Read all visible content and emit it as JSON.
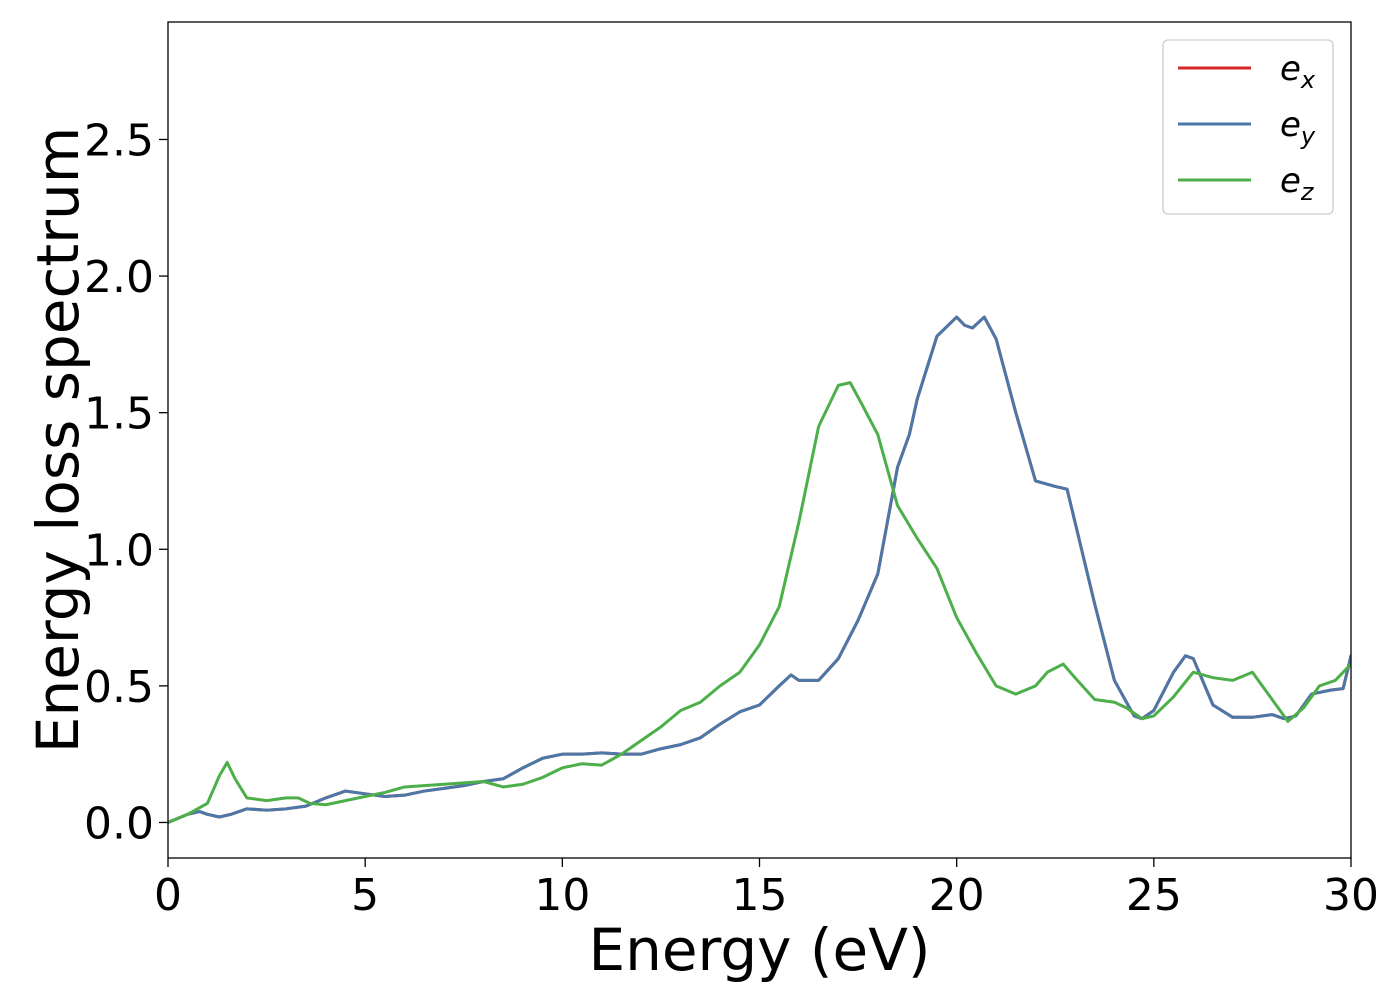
{
  "chart_data": {
    "type": "line",
    "title": "",
    "xlabel": "Energy (eV)",
    "ylabel": "Energy loss spectrum",
    "xlim": [
      0,
      30
    ],
    "ylim": [
      -0.13,
      2.93
    ],
    "xticks": [
      0,
      5,
      10,
      15,
      20,
      25,
      30
    ],
    "xtick_labels": [
      "0",
      "5",
      "10",
      "15",
      "20",
      "25",
      "30"
    ],
    "yticks": [
      0.0,
      0.5,
      1.0,
      1.5,
      2.0,
      2.5
    ],
    "ytick_labels": [
      "0.0",
      "0.5",
      "1.0",
      "1.5",
      "2.0",
      "2.5"
    ],
    "grid": false,
    "legend_position": "top-right",
    "series": [
      {
        "name": "e_x",
        "legend_base": "e",
        "legend_sub": "x",
        "color": "#d62728",
        "x": [
          0,
          0.5,
          0.8,
          1.0,
          1.3,
          1.6,
          2.0,
          2.5,
          3.0,
          3.5,
          4.0,
          4.5,
          5.0,
          5.5,
          6.0,
          6.5,
          7.0,
          7.5,
          8.0,
          8.5,
          9.0,
          9.5,
          10.0,
          10.5,
          11.0,
          11.5,
          12.0,
          12.5,
          13.0,
          13.5,
          14.0,
          14.5,
          15.0,
          15.5,
          15.8,
          16.0,
          16.5,
          17.0,
          17.5,
          18.0,
          18.5,
          18.8,
          19.0,
          19.5,
          20.0,
          20.2,
          20.4,
          20.7,
          21.0,
          21.5,
          22.0,
          22.5,
          22.8,
          23.0,
          23.5,
          24.0,
          24.5,
          24.7,
          25.0,
          25.5,
          25.8,
          26.0,
          26.5,
          27.0,
          27.5,
          28.0,
          28.3,
          28.6,
          29.0,
          29.5,
          29.8,
          30.0
        ],
        "y": [
          0.0,
          0.03,
          0.04,
          0.03,
          0.02,
          0.03,
          0.05,
          0.045,
          0.05,
          0.06,
          0.09,
          0.115,
          0.105,
          0.095,
          0.1,
          0.115,
          0.125,
          0.135,
          0.15,
          0.16,
          0.2,
          0.235,
          0.25,
          0.25,
          0.255,
          0.25,
          0.25,
          0.27,
          0.285,
          0.31,
          0.36,
          0.405,
          0.43,
          0.5,
          0.54,
          0.52,
          0.52,
          0.6,
          0.74,
          0.91,
          1.3,
          1.42,
          1.55,
          1.78,
          1.85,
          1.82,
          1.81,
          1.85,
          1.77,
          1.5,
          1.25,
          1.23,
          1.22,
          1.1,
          0.8,
          0.52,
          0.39,
          0.38,
          0.41,
          0.55,
          0.61,
          0.6,
          0.43,
          0.385,
          0.385,
          0.395,
          0.38,
          0.39,
          0.47,
          0.485,
          0.49,
          0.61
        ]
      },
      {
        "name": "e_y",
        "legend_base": "e",
        "legend_sub": "y",
        "color": "#4b78a8",
        "x": [
          0,
          0.5,
          0.8,
          1.0,
          1.3,
          1.6,
          2.0,
          2.5,
          3.0,
          3.5,
          4.0,
          4.5,
          5.0,
          5.5,
          6.0,
          6.5,
          7.0,
          7.5,
          8.0,
          8.5,
          9.0,
          9.5,
          10.0,
          10.5,
          11.0,
          11.5,
          12.0,
          12.5,
          13.0,
          13.5,
          14.0,
          14.5,
          15.0,
          15.5,
          15.8,
          16.0,
          16.5,
          17.0,
          17.5,
          18.0,
          18.5,
          18.8,
          19.0,
          19.5,
          20.0,
          20.2,
          20.4,
          20.7,
          21.0,
          21.5,
          22.0,
          22.5,
          22.8,
          23.0,
          23.5,
          24.0,
          24.5,
          24.7,
          25.0,
          25.5,
          25.8,
          26.0,
          26.5,
          27.0,
          27.5,
          28.0,
          28.3,
          28.6,
          29.0,
          29.5,
          29.8,
          30.0
        ],
        "y": [
          0.0,
          0.03,
          0.04,
          0.03,
          0.02,
          0.03,
          0.05,
          0.045,
          0.05,
          0.06,
          0.09,
          0.115,
          0.105,
          0.095,
          0.1,
          0.115,
          0.125,
          0.135,
          0.15,
          0.16,
          0.2,
          0.235,
          0.25,
          0.25,
          0.255,
          0.25,
          0.25,
          0.27,
          0.285,
          0.31,
          0.36,
          0.405,
          0.43,
          0.5,
          0.54,
          0.52,
          0.52,
          0.6,
          0.74,
          0.91,
          1.3,
          1.42,
          1.55,
          1.78,
          1.85,
          1.82,
          1.81,
          1.85,
          1.77,
          1.5,
          1.25,
          1.23,
          1.22,
          1.1,
          0.8,
          0.52,
          0.39,
          0.38,
          0.41,
          0.55,
          0.61,
          0.6,
          0.43,
          0.385,
          0.385,
          0.395,
          0.38,
          0.39,
          0.47,
          0.485,
          0.49,
          0.61
        ]
      },
      {
        "name": "e_z",
        "legend_base": "e",
        "legend_sub": "z",
        "color": "#4daf4a",
        "x": [
          0,
          0.5,
          1.0,
          1.3,
          1.5,
          1.7,
          2.0,
          2.5,
          3.0,
          3.3,
          3.6,
          4.0,
          4.5,
          5.0,
          5.5,
          6.0,
          6.5,
          7.0,
          7.5,
          8.0,
          8.5,
          9.0,
          9.5,
          10.0,
          10.5,
          11.0,
          11.5,
          12.0,
          12.5,
          13.0,
          13.5,
          14.0,
          14.5,
          15.0,
          15.5,
          16.0,
          16.5,
          17.0,
          17.3,
          17.6,
          18.0,
          18.5,
          19.0,
          19.5,
          20.0,
          20.5,
          21.0,
          21.5,
          22.0,
          22.3,
          22.7,
          23.0,
          23.5,
          24.0,
          24.3,
          24.7,
          25.0,
          25.5,
          26.0,
          26.5,
          27.0,
          27.5,
          28.0,
          28.4,
          28.8,
          29.2,
          29.6,
          30.0
        ],
        "y": [
          0.0,
          0.03,
          0.07,
          0.17,
          0.22,
          0.16,
          0.09,
          0.08,
          0.09,
          0.09,
          0.07,
          0.065,
          0.08,
          0.095,
          0.11,
          0.13,
          0.135,
          0.14,
          0.145,
          0.15,
          0.13,
          0.14,
          0.165,
          0.2,
          0.215,
          0.21,
          0.25,
          0.3,
          0.35,
          0.41,
          0.44,
          0.5,
          0.55,
          0.65,
          0.79,
          1.1,
          1.45,
          1.6,
          1.61,
          1.53,
          1.42,
          1.16,
          1.04,
          0.93,
          0.75,
          0.62,
          0.5,
          0.47,
          0.5,
          0.55,
          0.58,
          0.53,
          0.45,
          0.44,
          0.42,
          0.38,
          0.39,
          0.46,
          0.55,
          0.53,
          0.52,
          0.55,
          0.45,
          0.37,
          0.42,
          0.5,
          0.52,
          0.58
        ]
      }
    ]
  }
}
